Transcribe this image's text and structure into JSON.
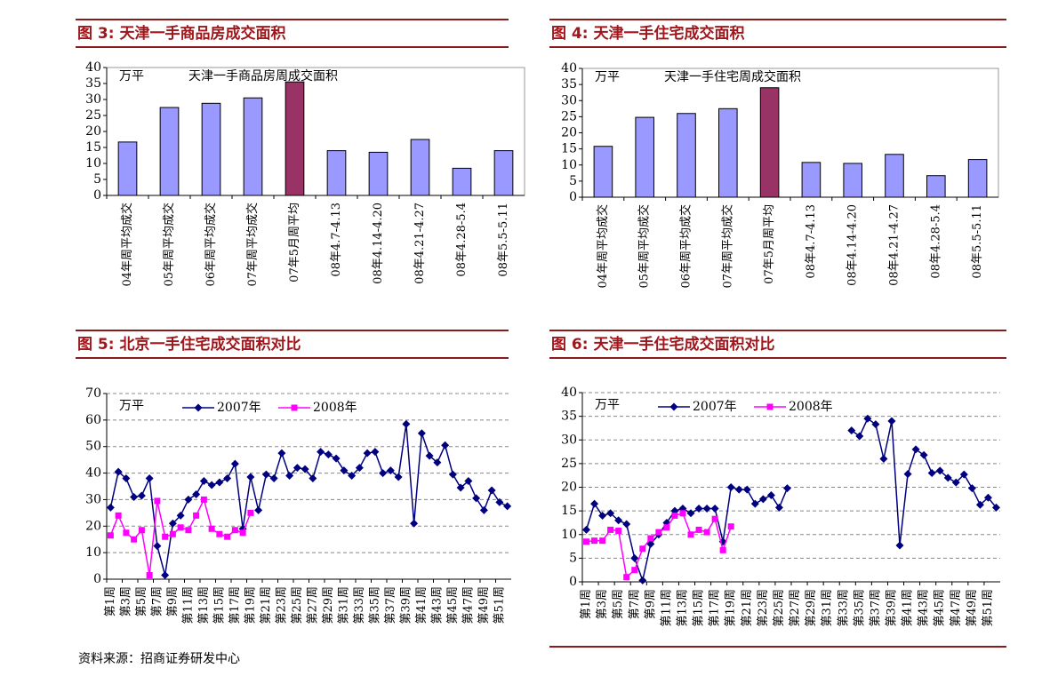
{
  "chart_data": [
    {
      "type": "bar",
      "title": "图 3: 天津一手商品房成交面积",
      "y_unit": "万平",
      "categories": [
        "04年周平均成交",
        "05年周平均成交",
        "06年周平均成交",
        "07年周平均成交",
        "07年5月周平均",
        "08年4.7-4.13",
        "08年4.14-4.20",
        "08年4.21-4.27",
        "08年4.28-5.4",
        "08年5.5-5.11"
      ],
      "series": [
        {
          "name": "天津一手商品房周成交面积",
          "colors": [
            "#9999ff",
            "#9999ff",
            "#9999ff",
            "#9999ff",
            "#993366",
            "#9999ff",
            "#9999ff",
            "#9999ff",
            "#9999ff",
            "#9999ff"
          ],
          "values": [
            16.7,
            27.5,
            28.8,
            30.5,
            35.5,
            14,
            13.5,
            17.5,
            8.5,
            14
          ]
        }
      ],
      "ylim": [
        0,
        40
      ],
      "yticks": [
        0,
        5,
        10,
        15,
        20,
        25,
        30,
        35,
        40
      ],
      "grid": false
    },
    {
      "type": "bar",
      "title": "图 4: 天津一手住宅成交面积",
      "y_unit": "万平",
      "categories": [
        "04年周平均成交",
        "05年周平均成交",
        "06年周平均成交",
        "07年周平均成交",
        "07年5月周平均",
        "08年4.7-4.13",
        "08年4.14-4.20",
        "08年4.21-4.27",
        "08年4.28-5.4",
        "08年5.5-5.11"
      ],
      "series": [
        {
          "name": "天津一手住宅周成交面积",
          "colors": [
            "#9999ff",
            "#9999ff",
            "#9999ff",
            "#9999ff",
            "#993366",
            "#9999ff",
            "#9999ff",
            "#9999ff",
            "#9999ff",
            "#9999ff"
          ],
          "values": [
            15.8,
            24.8,
            26,
            27.5,
            34,
            10.8,
            10.5,
            13.3,
            6.7,
            11.7
          ]
        }
      ],
      "ylim": [
        0,
        40
      ],
      "yticks": [
        0,
        5,
        10,
        15,
        20,
        25,
        30,
        35,
        40
      ],
      "grid": false
    },
    {
      "type": "line",
      "title": "图 5: 北京一手住宅成交面积对比",
      "y_unit": "万平",
      "categories": [
        "第1周",
        null,
        "第3周",
        null,
        "第5周",
        null,
        "第7周",
        null,
        "第9周",
        null,
        "第11周",
        null,
        "第13周",
        null,
        "第15周",
        null,
        "第17周",
        null,
        "第19周",
        null,
        "第21周",
        null,
        "第23周",
        null,
        "第25周",
        null,
        "第27周",
        null,
        "第29周",
        null,
        "第31周",
        null,
        "第33周",
        null,
        "第35周",
        null,
        "第37周",
        null,
        "第39周",
        null,
        "第41周",
        null,
        "第43周",
        null,
        "第45周",
        null,
        "第47周",
        null,
        "第49周",
        null,
        "第51周",
        null
      ],
      "series": [
        {
          "name": "2007年",
          "color": "#000080",
          "marker": "diamond",
          "values": [
            27,
            40.5,
            38,
            31,
            31.5,
            38,
            12.5,
            1.5,
            21,
            24,
            30,
            32,
            37,
            35.5,
            36.5,
            38,
            43.5,
            19,
            38.5,
            26,
            39.5,
            38,
            47.5,
            39,
            42,
            41.5,
            38,
            48,
            47,
            45.5,
            41,
            39,
            42,
            47.5,
            48,
            40,
            41,
            38.5,
            58.5,
            21,
            55,
            46.5,
            44,
            50.5,
            39.5,
            34.5,
            37,
            30.5,
            26,
            33.5,
            29,
            27.5
          ]
        },
        {
          "name": "2008年",
          "color": "#ff00ff",
          "marker": "square",
          "values": [
            16.5,
            24,
            17.5,
            15,
            18.5,
            1.5,
            29.5,
            16,
            17,
            19.5,
            18.5,
            24,
            30,
            19,
            17,
            16,
            18.5,
            17.5,
            25,
            null,
            null,
            null,
            null,
            null,
            null,
            null,
            null,
            null,
            null,
            null,
            null,
            null,
            null,
            null,
            null,
            null,
            null,
            null,
            null,
            null,
            null,
            null,
            null,
            null,
            null,
            null,
            null,
            null,
            null,
            null,
            null,
            null
          ]
        }
      ],
      "ylim": [
        0,
        70
      ],
      "yticks": [
        0,
        10,
        20,
        30,
        40,
        50,
        60,
        70
      ],
      "grid": true
    },
    {
      "type": "line",
      "title": "图 6: 天津一手住宅成交面积对比",
      "y_unit": "万平",
      "categories": [
        "第1周",
        null,
        "第3周",
        null,
        "第5周",
        null,
        "第7周",
        null,
        "第9周",
        null,
        "第11周",
        null,
        "第13周",
        null,
        "第15周",
        null,
        "第17周",
        null,
        "第19周",
        null,
        "第21周",
        null,
        "第23周",
        null,
        "第25周",
        null,
        "第27周",
        null,
        "第29周",
        null,
        "第31周",
        null,
        "第33周",
        null,
        "第35周",
        null,
        "第37周",
        null,
        "第39周",
        null,
        "第41周",
        null,
        "第43周",
        null,
        "第45周",
        null,
        "第47周",
        null,
        "第49周",
        null,
        "第51周",
        null
      ],
      "series": [
        {
          "name": "2007年",
          "color": "#000080",
          "marker": "diamond",
          "values": [
            11,
            16.5,
            14,
            14.5,
            13,
            12.2,
            5,
            0.3,
            8,
            10,
            12.5,
            15,
            15.5,
            14.5,
            15.5,
            15.5,
            15.5,
            8.5,
            20,
            19.5,
            19.5,
            16.5,
            17.5,
            18.3,
            15.7,
            19.8,
            null,
            null,
            null,
            null,
            null,
            null,
            null,
            32,
            30.8,
            34.5,
            33.3,
            26,
            34,
            7.7,
            22.8,
            28,
            26.8,
            23,
            23.5,
            22,
            21,
            22.7,
            19.8,
            16.3,
            17.8,
            15.7
          ]
        },
        {
          "name": "2008年",
          "color": "#ff00ff",
          "marker": "square",
          "values": [
            8.5,
            8.7,
            8.7,
            11,
            10.8,
            1,
            2.5,
            7,
            9.2,
            10.5,
            11.5,
            14,
            14.5,
            10,
            11,
            10.5,
            13.3,
            6.7,
            11.7,
            null,
            null,
            null,
            null,
            null,
            null,
            null,
            null,
            null,
            null,
            null,
            null,
            null,
            null,
            null,
            null,
            null,
            null,
            null,
            null,
            null,
            null,
            null,
            null,
            null,
            null,
            null,
            null,
            null,
            null,
            null,
            null,
            null
          ]
        }
      ],
      "ylim": [
        0,
        40
      ],
      "yticks": [
        0,
        5,
        10,
        15,
        20,
        25,
        30,
        35,
        40
      ],
      "grid": true
    }
  ],
  "source": "资料来源：招商证券研发中心"
}
